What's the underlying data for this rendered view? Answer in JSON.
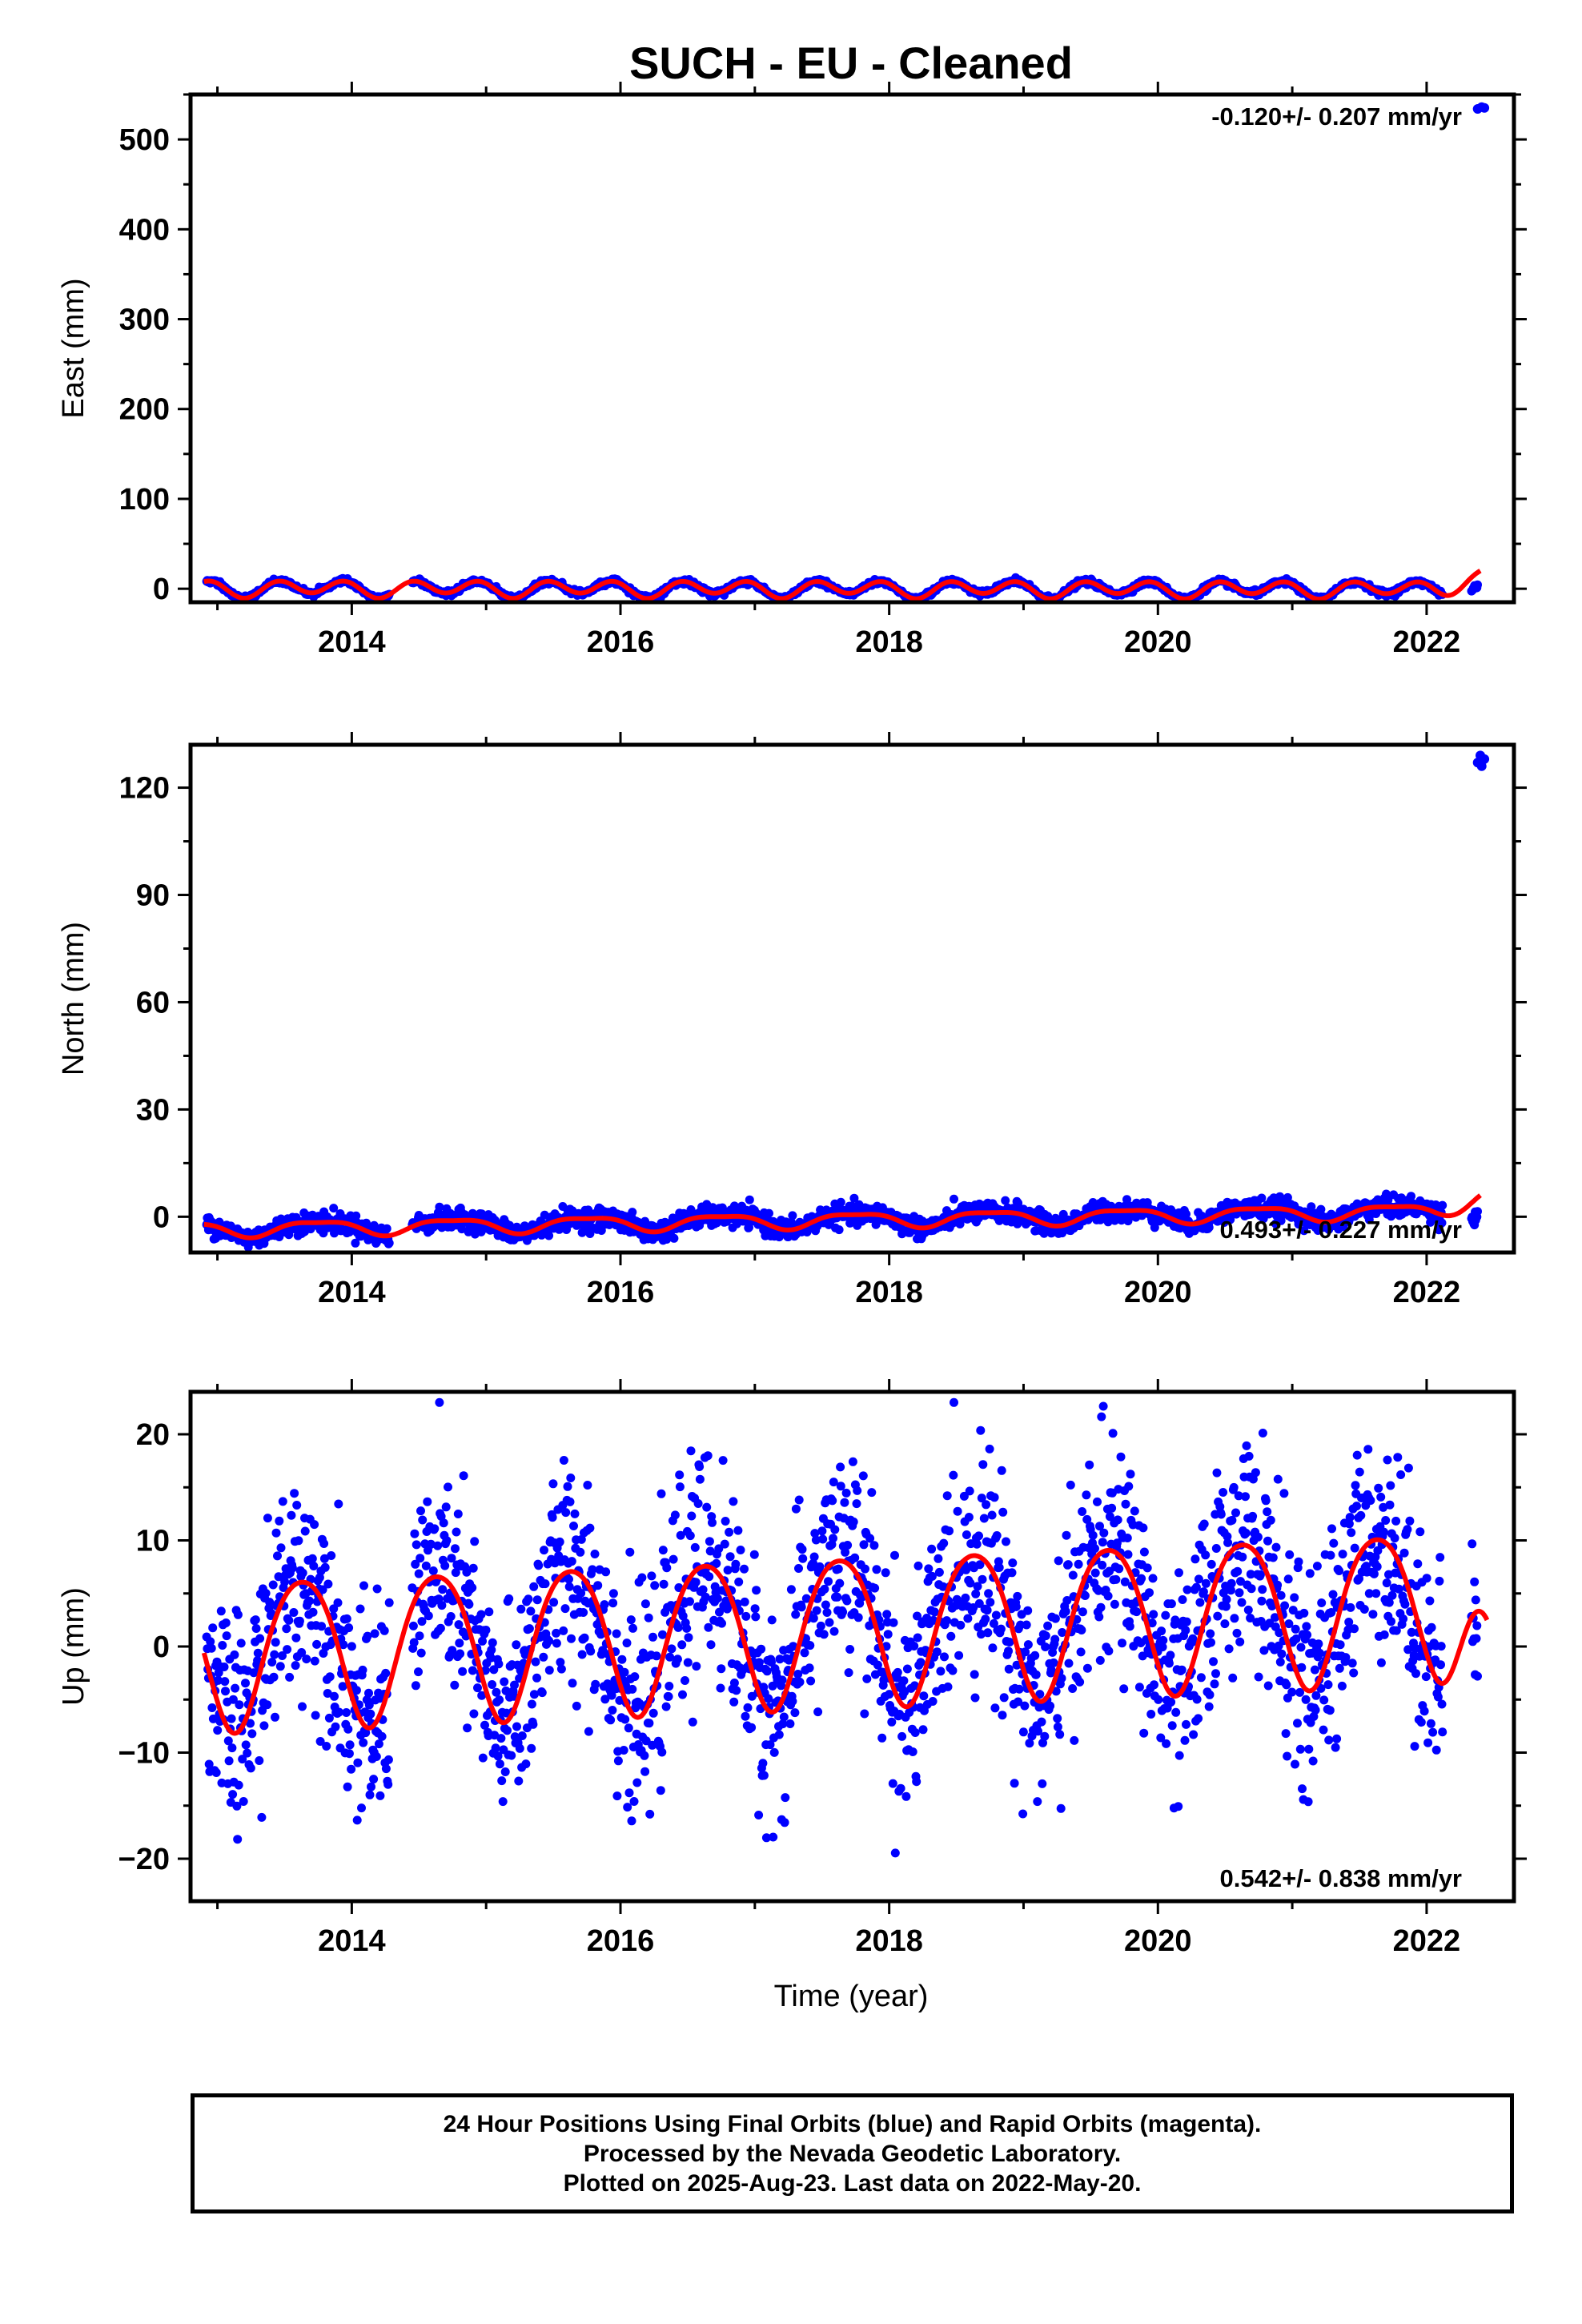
{
  "chart_data": {
    "title": "SUCH  - EU - Cleaned",
    "type": "scatter",
    "xlabel": "Time (year)",
    "xlim": [
      2012.8,
      2022.65
    ],
    "x_ticks": [
      2014,
      2016,
      2018,
      2020,
      2022
    ],
    "colors": {
      "points": "#0000ff",
      "model": "#ff0000"
    },
    "panels": [
      {
        "id": "east",
        "ylabel": "East (mm)",
        "ylim": [
          -15,
          550
        ],
        "y_ticks": [
          0,
          100,
          200,
          300,
          400,
          500
        ],
        "rate": "-0.120+/- 0.207 mm/yr",
        "rate_position": "top-right",
        "model": {
          "t0": 2012.9,
          "offset": 0.5,
          "trend": -0.12,
          "annual_amp": 3.0,
          "semi_amp": 8.0,
          "phase": 0.45,
          "end": 2022.4,
          "final_level": 20
        },
        "noise_sd": 1.5,
        "outliers": [
          [
            2022.38,
            534
          ],
          [
            2022.41,
            536
          ],
          [
            2022.43,
            535
          ]
        ]
      },
      {
        "id": "north",
        "ylabel": "North (mm)",
        "ylim": [
          -10,
          132
        ],
        "y_ticks": [
          0,
          30,
          60,
          90,
          120
        ],
        "rate": "0.493+/- 0.227 mm/yr",
        "rate_position": "bottom-right",
        "model": {
          "t0": 2012.9,
          "offset": -3.5,
          "trend": 0.55,
          "annual_amp": 2.0,
          "semi_amp": 0.6,
          "phase": 0.5,
          "end": 2022.4,
          "final_level": 6
        },
        "noise_sd": 1.4,
        "outliers": [
          [
            2022.38,
            127
          ],
          [
            2022.4,
            129
          ],
          [
            2022.43,
            128
          ],
          [
            2022.41,
            126
          ]
        ]
      },
      {
        "id": "up",
        "ylabel": "Up (mm)",
        "ylim": [
          -24,
          24
        ],
        "y_ticks": [
          -20,
          -10,
          0,
          10,
          20
        ],
        "rate": "0.542+/- 0.838 mm/yr",
        "rate_position": "bottom-right",
        "model": {
          "t0": 2012.9,
          "offset": -0.5,
          "trend": 0.5,
          "annual_amp": 7.0,
          "semi_amp": 0.8,
          "phase": 0.38,
          "end": 2022.45,
          "final_level": 2.5
        },
        "noise_sd": 5.0,
        "outliers": []
      }
    ],
    "data_gaps": [
      [
        2014.28,
        2014.45
      ],
      [
        2022.12,
        2022.33
      ]
    ]
  },
  "footer": {
    "line1": "24 Hour Positions Using Final Orbits (blue) and Rapid Orbits (magenta).",
    "line2": "Processed by the Nevada Geodetic Laboratory.",
    "line3": "Plotted on 2025-Aug-23. Last data on 2022-May-20."
  }
}
